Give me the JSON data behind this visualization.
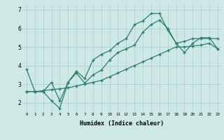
{
  "xlabel": "Humidex (Indice chaleur)",
  "bg_color": "#cde8e5",
  "line_color": "#2e7d72",
  "grid_color": "#aacfcb",
  "xlim": [
    -0.5,
    23.5
  ],
  "ylim": [
    1.5,
    7.3
  ],
  "xticks": [
    0,
    1,
    2,
    3,
    4,
    5,
    6,
    7,
    8,
    9,
    10,
    11,
    12,
    13,
    14,
    15,
    16,
    17,
    18,
    19,
    20,
    21,
    22,
    23
  ],
  "yticks": [
    2,
    3,
    4,
    5,
    6,
    7
  ],
  "line1_x": [
    0,
    1,
    2,
    3,
    4,
    5,
    6,
    7,
    8,
    9,
    10,
    11,
    12,
    13,
    14,
    15,
    16,
    17,
    18,
    19,
    20,
    21,
    22,
    23
  ],
  "line1_y": [
    3.8,
    2.6,
    2.6,
    2.1,
    1.7,
    3.1,
    3.7,
    3.3,
    4.3,
    4.6,
    4.8,
    5.2,
    5.45,
    6.2,
    6.4,
    6.8,
    6.8,
    5.9,
    5.2,
    5.3,
    5.45,
    5.45,
    5.45,
    5.45
  ],
  "line2_x": [
    0,
    1,
    2,
    3,
    4,
    5,
    6,
    7,
    8,
    9,
    10,
    11,
    12,
    13,
    14,
    15,
    16,
    17,
    18,
    19,
    20,
    21,
    22,
    23
  ],
  "line2_y": [
    2.6,
    2.6,
    2.6,
    3.1,
    2.1,
    3.1,
    3.6,
    3.05,
    3.5,
    3.75,
    4.3,
    4.7,
    4.9,
    5.1,
    5.8,
    6.2,
    6.45,
    6.0,
    5.2,
    4.7,
    5.2,
    5.5,
    5.5,
    4.9
  ],
  "line3_x": [
    0,
    1,
    2,
    3,
    4,
    5,
    6,
    7,
    8,
    9,
    10,
    11,
    12,
    13,
    14,
    15,
    16,
    17,
    18,
    19,
    20,
    21,
    22,
    23
  ],
  "line3_y": [
    2.6,
    2.6,
    2.65,
    2.7,
    2.75,
    2.8,
    2.9,
    3.0,
    3.1,
    3.2,
    3.4,
    3.6,
    3.8,
    4.0,
    4.2,
    4.4,
    4.6,
    4.8,
    5.0,
    5.0,
    5.05,
    5.1,
    5.2,
    4.9
  ],
  "marker": "+",
  "markersize": 3.5,
  "linewidth": 0.9
}
